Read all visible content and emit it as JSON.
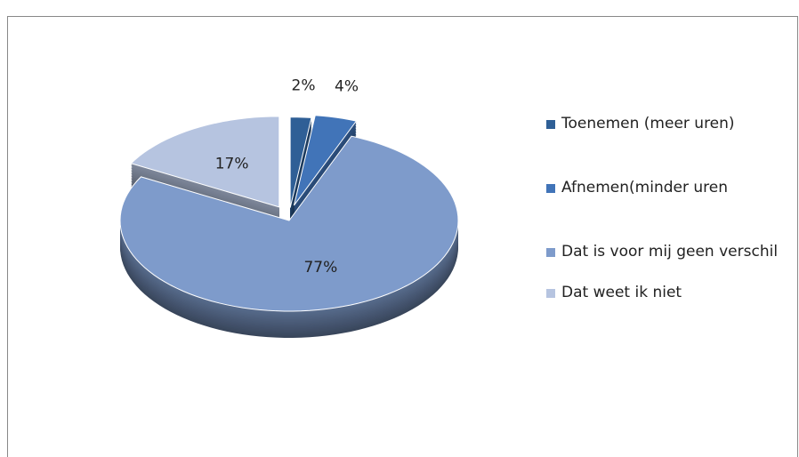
{
  "chart_data": {
    "type": "pie",
    "categories": [
      "Toenemen (meer uren)",
      "Afnemen(minder uren",
      "Dat is voor mij geen verschil",
      "Dat weet ik niet"
    ],
    "values": [
      2,
      4,
      77,
      17
    ],
    "value_labels": [
      "2%",
      "4%",
      "77%",
      "17%"
    ],
    "colors": [
      "#2f5f96",
      "#4174b8",
      "#7e9bcb",
      "#b6c4e0"
    ],
    "legend": "right"
  }
}
